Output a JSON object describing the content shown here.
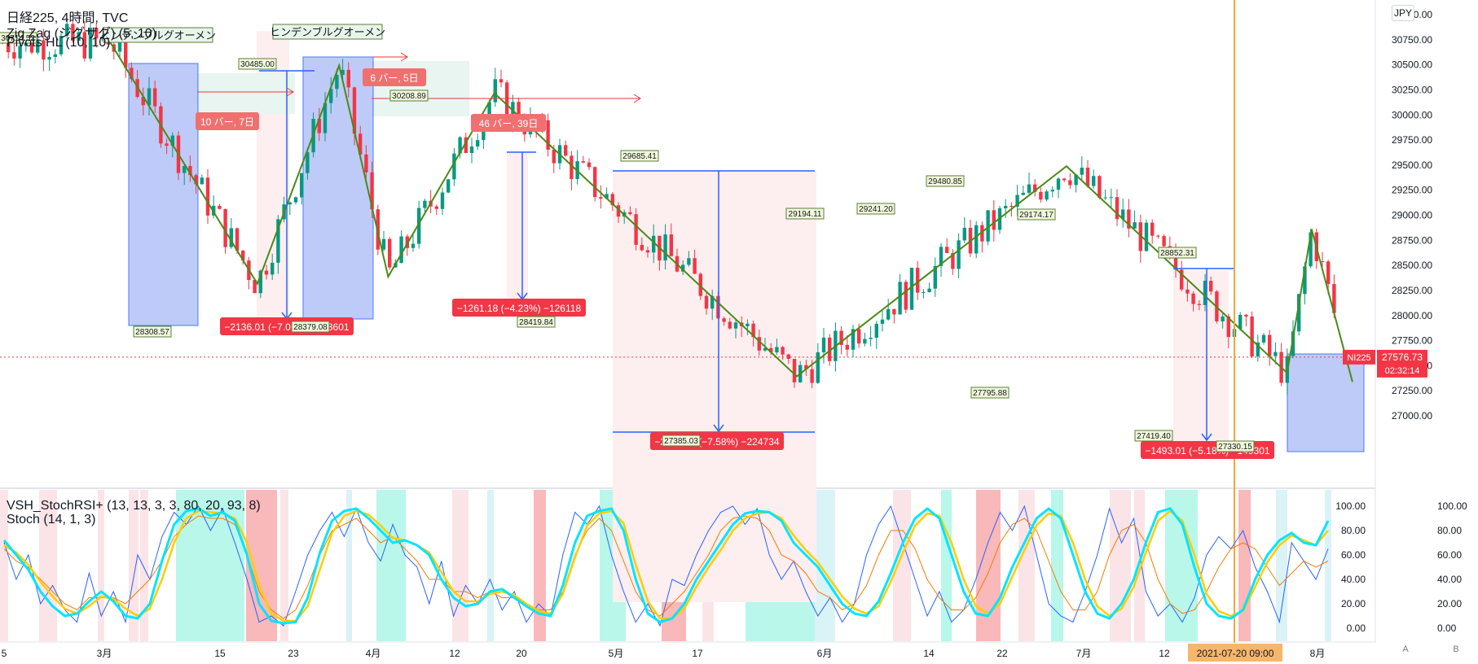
{
  "legend": {
    "line1": "日経225, 4時間, TVC",
    "line2": "Zig Zag (ジグザグ) (5, 10)",
    "line3": "Pivots HL (10, 10)",
    "osc1": "VSH_StochRSI+ (13, 13, 3, 3, 80, 20, 93, 8)",
    "osc2": "Stoch (14, 1, 3)"
  },
  "currency_button": "JPY",
  "bottom_buttons": [
    "A",
    "B"
  ],
  "price_tag": {
    "symbol": "NI225",
    "price": "27576.73",
    "countdown": "02:32:14"
  },
  "crosshair_label": "2021-07-20   09:00",
  "y_axis_ticks": [
    "31000.00",
    "30750.00",
    "30500.00",
    "30250.00",
    "30000.00",
    "29750.00",
    "29500.00",
    "29250.00",
    "29000.00",
    "28750.00",
    "28500.00",
    "28250.00",
    "28000.00",
    "27750.00",
    "27500.00",
    "27250.00",
    "27000.00"
  ],
  "osc_ticks": [
    "100.00",
    "80.00",
    "60.00",
    "40.00",
    "20.00",
    "0.00"
  ],
  "x_axis_labels": [
    "5",
    "3月",
    "15",
    "23",
    "4月",
    "12",
    "20",
    "5月",
    "17",
    "6月",
    "14",
    "22",
    "7月",
    "12",
    "8月"
  ],
  "pattern_labels": [
    "ヒンデンブルグオーメン",
    "ヒンデンブルグオーメン"
  ],
  "bar_labels": [
    "10 バー, 7日",
    "6 バー, 5日",
    "46 バー, 39日"
  ],
  "drop_labels": [
    "−2136.01 (−7.00%) −213601",
    "−1261.18 (−4.23%) −126118",
    "−2247.34 (−7.58%) −224734",
    "−1493.01 (−5.18%) −149301"
  ],
  "chart_data": {
    "type": "line",
    "title": "日経225, 4時間, TVC",
    "ylim": [
      26900,
      31100
    ],
    "zigzag": {
      "x": [
        "2021-02-18",
        "2021-03-08",
        "2021-03-18",
        "2021-03-24",
        "2021-04-06",
        "2021-05-13",
        "2021-06-15",
        "2021-07-12",
        "2021-07-15",
        "2021-07-20"
      ],
      "values": [
        30714.52,
        28308.57,
        30485.0,
        28379.08,
        30208.89,
        27385.03,
        29480.85,
        27419.4,
        28852.31,
        27330.15
      ]
    },
    "pivot_labels": [
      {
        "label": "30714.52",
        "value": 30714.52
      },
      {
        "label": "28308.57",
        "value": 28308.57
      },
      {
        "label": "30485.00",
        "value": 30485.0
      },
      {
        "label": "28379.08",
        "value": 28379.08
      },
      {
        "label": "30208.89",
        "value": 30208.89
      },
      {
        "label": "28419.84",
        "value": 28419.84
      },
      {
        "label": "29685.41",
        "value": 29685.41
      },
      {
        "label": "27385.03",
        "value": 27385.03
      },
      {
        "label": "29194.11",
        "value": 29194.11
      },
      {
        "label": "29241.20",
        "value": 29241.2
      },
      {
        "label": "29480.85",
        "value": 29480.85
      },
      {
        "label": "27795.88",
        "value": 27795.88
      },
      {
        "label": "29174.17",
        "value": 29174.17
      },
      {
        "label": "27419.40",
        "value": 27419.4
      },
      {
        "label": "28852.31",
        "value": 28852.31
      },
      {
        "label": "27330.15",
        "value": 27330.15
      }
    ],
    "last_price": 27576.73,
    "oscillator": {
      "ylim": [
        -10,
        110
      ],
      "stoch_rsi_k": [
        72,
        60,
        48,
        30,
        18,
        10,
        12,
        22,
        30,
        22,
        10,
        8,
        20,
        55,
        85,
        96,
        98,
        92,
        95,
        88,
        60,
        20,
        6,
        4,
        5,
        25,
        62,
        88,
        96,
        98,
        90,
        80,
        70,
        72,
        68,
        60,
        40,
        25,
        18,
        20,
        30,
        32,
        25,
        18,
        12,
        10,
        35,
        70,
        92,
        96,
        98,
        80,
        40,
        12,
        5,
        8,
        20,
        40,
        55,
        70,
        85,
        94,
        96,
        95,
        88,
        70,
        60,
        50,
        35,
        20,
        12,
        10,
        22,
        45,
        70,
        90,
        98,
        90,
        60,
        30,
        12,
        10,
        25,
        50,
        70,
        90,
        98,
        90,
        60,
        30,
        12,
        8,
        20,
        40,
        70,
        95,
        98,
        85,
        50,
        20,
        10,
        8,
        15,
        40,
        60,
        72,
        78,
        70,
        68,
        88
      ],
      "stoch_rsi_d": [
        68,
        62,
        52,
        38,
        26,
        16,
        12,
        18,
        26,
        24,
        16,
        10,
        16,
        40,
        70,
        90,
        96,
        95,
        94,
        90,
        70,
        35,
        12,
        6,
        6,
        18,
        48,
        78,
        92,
        96,
        93,
        84,
        74,
        72,
        68,
        62,
        46,
        30,
        22,
        22,
        28,
        30,
        27,
        20,
        14,
        12,
        28,
        58,
        84,
        94,
        96,
        86,
        52,
        22,
        8,
        8,
        16,
        34,
        50,
        64,
        80,
        90,
        94,
        95,
        90,
        76,
        64,
        54,
        40,
        26,
        16,
        12,
        18,
        38,
        62,
        84,
        94,
        92,
        70,
        40,
        18,
        12,
        20,
        42,
        64,
        84,
        94,
        92,
        70,
        40,
        18,
        10,
        16,
        34,
        62,
        88,
        96,
        88,
        60,
        28,
        14,
        10,
        14,
        34,
        54,
        68,
        76,
        72,
        68,
        80
      ],
      "stoch": [
        70,
        40,
        60,
        20,
        35,
        15,
        5,
        45,
        10,
        30,
        5,
        60,
        40,
        75,
        95,
        85,
        100,
        80,
        98,
        70,
        40,
        5,
        10,
        2,
        30,
        60,
        80,
        95,
        75,
        98,
        70,
        55,
        85,
        60,
        50,
        20,
        55,
        10,
        35,
        20,
        40,
        15,
        30,
        5,
        20,
        10,
        60,
        95,
        85,
        100,
        60,
        30,
        5,
        20,
        2,
        40,
        35,
        60,
        80,
        95,
        100,
        85,
        98,
        60,
        40,
        55,
        30,
        10,
        25,
        5,
        20,
        60,
        85,
        100,
        70,
        40,
        10,
        30,
        5,
        15,
        40,
        70,
        95,
        80,
        100,
        60,
        20,
        10,
        5,
        30,
        60,
        98,
        70,
        90,
        30,
        10,
        20,
        5,
        25,
        60,
        75,
        65,
        80,
        50,
        30,
        5,
        70,
        55,
        40,
        65
      ],
      "stoch_signal": [
        65,
        55,
        50,
        40,
        30,
        20,
        15,
        25,
        25,
        25,
        20,
        30,
        40,
        55,
        75,
        85,
        92,
        90,
        90,
        85,
        60,
        30,
        15,
        8,
        15,
        35,
        60,
        80,
        85,
        90,
        80,
        70,
        75,
        65,
        55,
        40,
        40,
        30,
        30,
        25,
        30,
        25,
        25,
        20,
        15,
        15,
        30,
        60,
        80,
        90,
        80,
        55,
        30,
        15,
        10,
        20,
        30,
        45,
        60,
        80,
        90,
        92,
        90,
        80,
        60,
        55,
        45,
        30,
        25,
        15,
        20,
        35,
        60,
        80,
        80,
        65,
        40,
        25,
        15,
        15,
        25,
        45,
        70,
        85,
        90,
        80,
        55,
        30,
        15,
        15,
        30,
        60,
        80,
        85,
        70,
        40,
        20,
        12,
        15,
        30,
        50,
        65,
        70,
        65,
        50,
        35,
        45,
        55,
        50,
        55
      ]
    }
  }
}
